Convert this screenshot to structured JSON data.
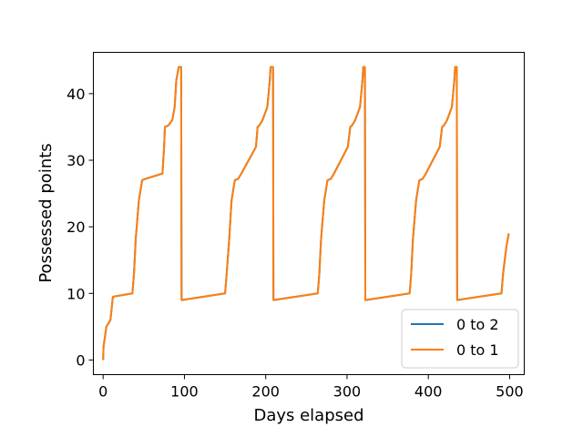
{
  "chart_data": {
    "type": "line",
    "title": "",
    "xlabel": "Days elapsed",
    "ylabel": "Possessed points",
    "xlim": [
      -12,
      518
    ],
    "ylim": [
      -2.2,
      46.2
    ],
    "xticks": [
      0,
      100,
      200,
      300,
      400,
      500
    ],
    "yticks": [
      0,
      10,
      20,
      30,
      40
    ],
    "grid": false,
    "legend_position": "lower right",
    "series": [
      {
        "name": "0 to 2",
        "color": "#1f77b4",
        "x": [
          0,
          0.5,
          4,
          9,
          12,
          36,
          38,
          40,
          44,
          48,
          52,
          73,
          75,
          76,
          80,
          85,
          88,
          90,
          93,
          95,
          96,
          96.5,
          150,
          152,
          155,
          158,
          162,
          166,
          170,
          188,
          190,
          192,
          196,
          202,
          205,
          206,
          209,
          209.5,
          264,
          266,
          268,
          272,
          276,
          280,
          284,
          301,
          304,
          306,
          310,
          316,
          319,
          320,
          322,
          322.5,
          377,
          379,
          381,
          385,
          389,
          393,
          397,
          414,
          417,
          419,
          423,
          429,
          432,
          433,
          435,
          435.5,
          490,
          492,
          494,
          496,
          499
        ],
        "y": [
          0,
          2,
          5,
          6,
          9.5,
          10,
          13,
          18,
          24,
          27,
          27.2,
          28,
          32,
          35,
          35.2,
          36,
          38,
          42,
          44,
          44,
          44,
          9,
          10,
          13,
          18,
          24,
          27,
          27.2,
          28,
          32,
          35,
          35.2,
          36,
          38,
          42,
          44,
          44,
          9,
          10,
          13,
          18,
          24,
          27,
          27.2,
          28,
          32,
          35,
          35.2,
          36,
          38,
          42,
          44,
          44,
          9,
          10,
          13,
          18,
          24,
          27,
          27.2,
          28,
          32,
          35,
          35.2,
          36,
          38,
          42,
          44,
          44,
          9,
          10,
          13,
          15,
          17,
          19
        ]
      },
      {
        "name": "0 to 1",
        "color": "#ff7f0e",
        "x": [
          0,
          0.5,
          4,
          9,
          12,
          36,
          38,
          40,
          44,
          48,
          52,
          73,
          75,
          76,
          80,
          85,
          88,
          90,
          93,
          95,
          96,
          96.5,
          150,
          152,
          155,
          158,
          162,
          166,
          170,
          188,
          190,
          192,
          196,
          202,
          205,
          206,
          209,
          209.5,
          264,
          266,
          268,
          272,
          276,
          280,
          284,
          301,
          304,
          306,
          310,
          316,
          319,
          320,
          322,
          322.5,
          377,
          379,
          381,
          385,
          389,
          393,
          397,
          414,
          417,
          419,
          423,
          429,
          432,
          433,
          435,
          435.5,
          490,
          492,
          494,
          496,
          499
        ],
        "y": [
          0,
          2,
          5,
          6,
          9.5,
          10,
          13,
          18,
          24,
          27,
          27.2,
          28,
          32,
          35,
          35.2,
          36,
          38,
          42,
          44,
          44,
          44,
          9,
          10,
          13,
          18,
          24,
          27,
          27.2,
          28,
          32,
          35,
          35.2,
          36,
          38,
          42,
          44,
          44,
          9,
          10,
          13,
          18,
          24,
          27,
          27.2,
          28,
          32,
          35,
          35.2,
          36,
          38,
          42,
          44,
          44,
          9,
          10,
          13,
          18,
          24,
          27,
          27.2,
          28,
          32,
          35,
          35.2,
          36,
          38,
          42,
          44,
          44,
          9,
          10,
          13,
          15,
          17,
          19
        ]
      }
    ]
  }
}
